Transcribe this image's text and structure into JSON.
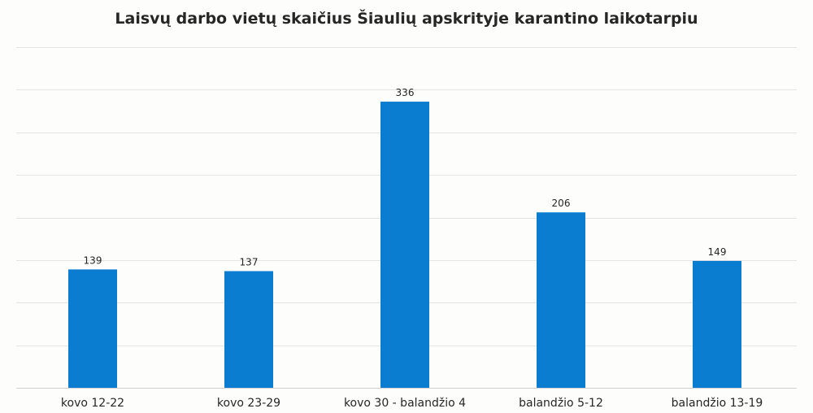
{
  "chart_data": {
    "type": "bar",
    "title": "Laisvų darbo vietų skaičius Šiaulių apskrityje karantino laikotarpiu",
    "categories": [
      "kovo 12-22",
      "kovo 23-29",
      "kovo 30 - balandžio 4",
      "balandžio 5-12",
      "balandžio 13-19"
    ],
    "values": [
      139,
      137,
      336,
      206,
      149
    ],
    "xlabel": "",
    "ylabel": "",
    "ylim": [
      0,
      400
    ],
    "y_gridline_step": 50,
    "y_tick_labels_visible": false,
    "grid": true,
    "legend": "none",
    "data_labels": true,
    "colors": {
      "bar": "#0a7dd0"
    }
  }
}
